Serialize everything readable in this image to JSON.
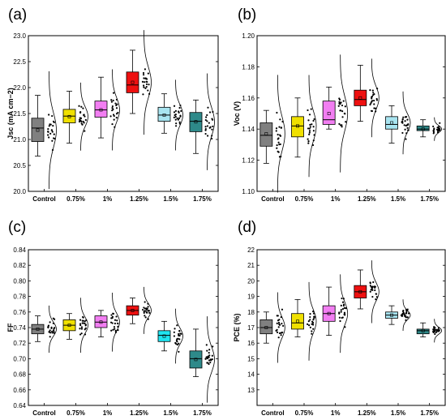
{
  "chart_data": [
    {
      "type": "box",
      "panel": "(a)",
      "ylabel": "Jsc (mA cm−2)",
      "categories": [
        "Control",
        "0.75%",
        "1%",
        "1.25%",
        "1.5%",
        "1.75%"
      ],
      "ylim": [
        20.0,
        23.0
      ],
      "yticks": [
        "20.0",
        "20.5",
        "21.0",
        "21.5",
        "22.0",
        "22.5",
        "23.0"
      ],
      "box_colors": [
        "#808080",
        "#f0e000",
        "#f27ef2",
        "#ee1010",
        "#a8e4f0",
        "#2e8a8a"
      ],
      "boxes": [
        {
          "q1": 20.96,
          "median": 21.22,
          "q3": 21.41,
          "mean": 21.18,
          "whisker_low": 20.68,
          "whisker_high": 21.85
        },
        {
          "q1": 21.32,
          "median": 21.45,
          "q3": 21.58,
          "mean": 21.44,
          "whisker_low": 20.93,
          "whisker_high": 21.93
        },
        {
          "q1": 21.43,
          "median": 21.57,
          "q3": 21.74,
          "mean": 21.57,
          "whisker_low": 21.03,
          "whisker_high": 22.2
        },
        {
          "q1": 21.9,
          "median": 22.05,
          "q3": 22.3,
          "mean": 22.1,
          "whisker_low": 21.5,
          "whisker_high": 22.72
        },
        {
          "q1": 21.35,
          "median": 21.47,
          "q3": 21.62,
          "mean": 21.47,
          "whisker_low": 21.12,
          "whisker_high": 21.88
        },
        {
          "q1": 21.15,
          "median": 21.35,
          "q3": 21.52,
          "mean": 21.34,
          "whisker_low": 20.73,
          "whisker_high": 21.76
        }
      ]
    },
    {
      "type": "box",
      "panel": "(b)",
      "ylabel": "Voc (V)",
      "categories": [
        "Control",
        "0.75%",
        "1%",
        "1.25%",
        "1.5%",
        "1.75%"
      ],
      "ylim": [
        1.1,
        1.2
      ],
      "yticks": [
        "1.10",
        "1.12",
        "1.14",
        "1.16",
        "1.18",
        "1.20"
      ],
      "box_colors": [
        "#808080",
        "#f0e000",
        "#f27ef2",
        "#ee1010",
        "#a8e4f0",
        "#2e8a8a"
      ],
      "boxes": [
        {
          "q1": 1.129,
          "median": 1.136,
          "q3": 1.144,
          "mean": 1.137,
          "whisker_low": 1.118,
          "whisker_high": 1.152
        },
        {
          "q1": 1.135,
          "median": 1.142,
          "q3": 1.148,
          "mean": 1.142,
          "whisker_low": 1.122,
          "whisker_high": 1.16
        },
        {
          "q1": 1.143,
          "median": 1.146,
          "q3": 1.158,
          "mean": 1.15,
          "whisker_low": 1.14,
          "whisker_high": 1.167
        },
        {
          "q1": 1.155,
          "median": 1.159,
          "q3": 1.165,
          "mean": 1.16,
          "whisker_low": 1.145,
          "whisker_high": 1.181
        },
        {
          "q1": 1.14,
          "median": 1.143,
          "q3": 1.148,
          "mean": 1.144,
          "whisker_low": 1.131,
          "whisker_high": 1.155
        },
        {
          "q1": 1.139,
          "median": 1.14,
          "q3": 1.142,
          "mean": 1.14,
          "whisker_low": 1.135,
          "whisker_high": 1.146
        }
      ]
    },
    {
      "type": "box",
      "panel": "(c)",
      "ylabel": "FF",
      "categories": [
        "Control",
        "0.75%",
        "1%",
        "1.25%",
        "1.5%",
        "1.75%"
      ],
      "ylim": [
        0.64,
        0.84
      ],
      "yticks": [
        "0.64",
        "0.66",
        "0.68",
        "0.70",
        "0.72",
        "0.74",
        "0.76",
        "0.78",
        "0.80",
        "0.82",
        "0.84"
      ],
      "box_colors": [
        "#808080",
        "#f0e000",
        "#f27ef2",
        "#ee1010",
        "#20e4f0",
        "#2e8a8a"
      ],
      "boxes": [
        {
          "q1": 0.732,
          "median": 0.738,
          "q3": 0.744,
          "mean": 0.738,
          "whisker_low": 0.722,
          "whisker_high": 0.755
        },
        {
          "q1": 0.736,
          "median": 0.743,
          "q3": 0.75,
          "mean": 0.743,
          "whisker_low": 0.725,
          "whisker_high": 0.758
        },
        {
          "q1": 0.74,
          "median": 0.747,
          "q3": 0.755,
          "mean": 0.747,
          "whisker_low": 0.728,
          "whisker_high": 0.762
        },
        {
          "q1": 0.756,
          "median": 0.762,
          "q3": 0.768,
          "mean": 0.762,
          "whisker_low": 0.745,
          "whisker_high": 0.778
        },
        {
          "q1": 0.722,
          "median": 0.73,
          "q3": 0.736,
          "mean": 0.729,
          "whisker_low": 0.71,
          "whisker_high": 0.748
        },
        {
          "q1": 0.688,
          "median": 0.7,
          "q3": 0.71,
          "mean": 0.699,
          "whisker_low": 0.677,
          "whisker_high": 0.738
        }
      ]
    },
    {
      "type": "box",
      "panel": "(d)",
      "ylabel": "PCE (%)",
      "categories": [
        "Control",
        "0.75%",
        "1%",
        "1.25%",
        "1.5%",
        "1.75%"
      ],
      "ylim": [
        12,
        22
      ],
      "yticks": [
        "13",
        "14",
        "15",
        "16",
        "17",
        "18",
        "19",
        "20",
        "21",
        "22"
      ],
      "box_colors": [
        "#808080",
        "#f0e000",
        "#f27ef2",
        "#ee1010",
        "#a8e4f0",
        "#2e8a8a"
      ],
      "boxes": [
        {
          "q1": 16.6,
          "median": 17.0,
          "q3": 17.5,
          "mean": 17.0,
          "whisker_low": 16.0,
          "whisker_high": 18.0
        },
        {
          "q1": 16.9,
          "median": 17.3,
          "q3": 17.9,
          "mean": 17.4,
          "whisker_low": 16.4,
          "whisker_high": 18.8
        },
        {
          "q1": 17.4,
          "median": 17.9,
          "q3": 18.4,
          "mean": 17.9,
          "whisker_low": 16.5,
          "whisker_high": 19.6
        },
        {
          "q1": 18.9,
          "median": 19.3,
          "q3": 19.7,
          "mean": 19.3,
          "whisker_low": 18.2,
          "whisker_high": 20.7
        },
        {
          "q1": 17.6,
          "median": 17.8,
          "q3": 18.0,
          "mean": 17.8,
          "whisker_low": 17.2,
          "whisker_high": 18.4
        },
        {
          "q1": 16.6,
          "median": 16.8,
          "q3": 16.9,
          "mean": 16.8,
          "whisker_low": 16.4,
          "whisker_high": 17.3
        }
      ]
    }
  ]
}
